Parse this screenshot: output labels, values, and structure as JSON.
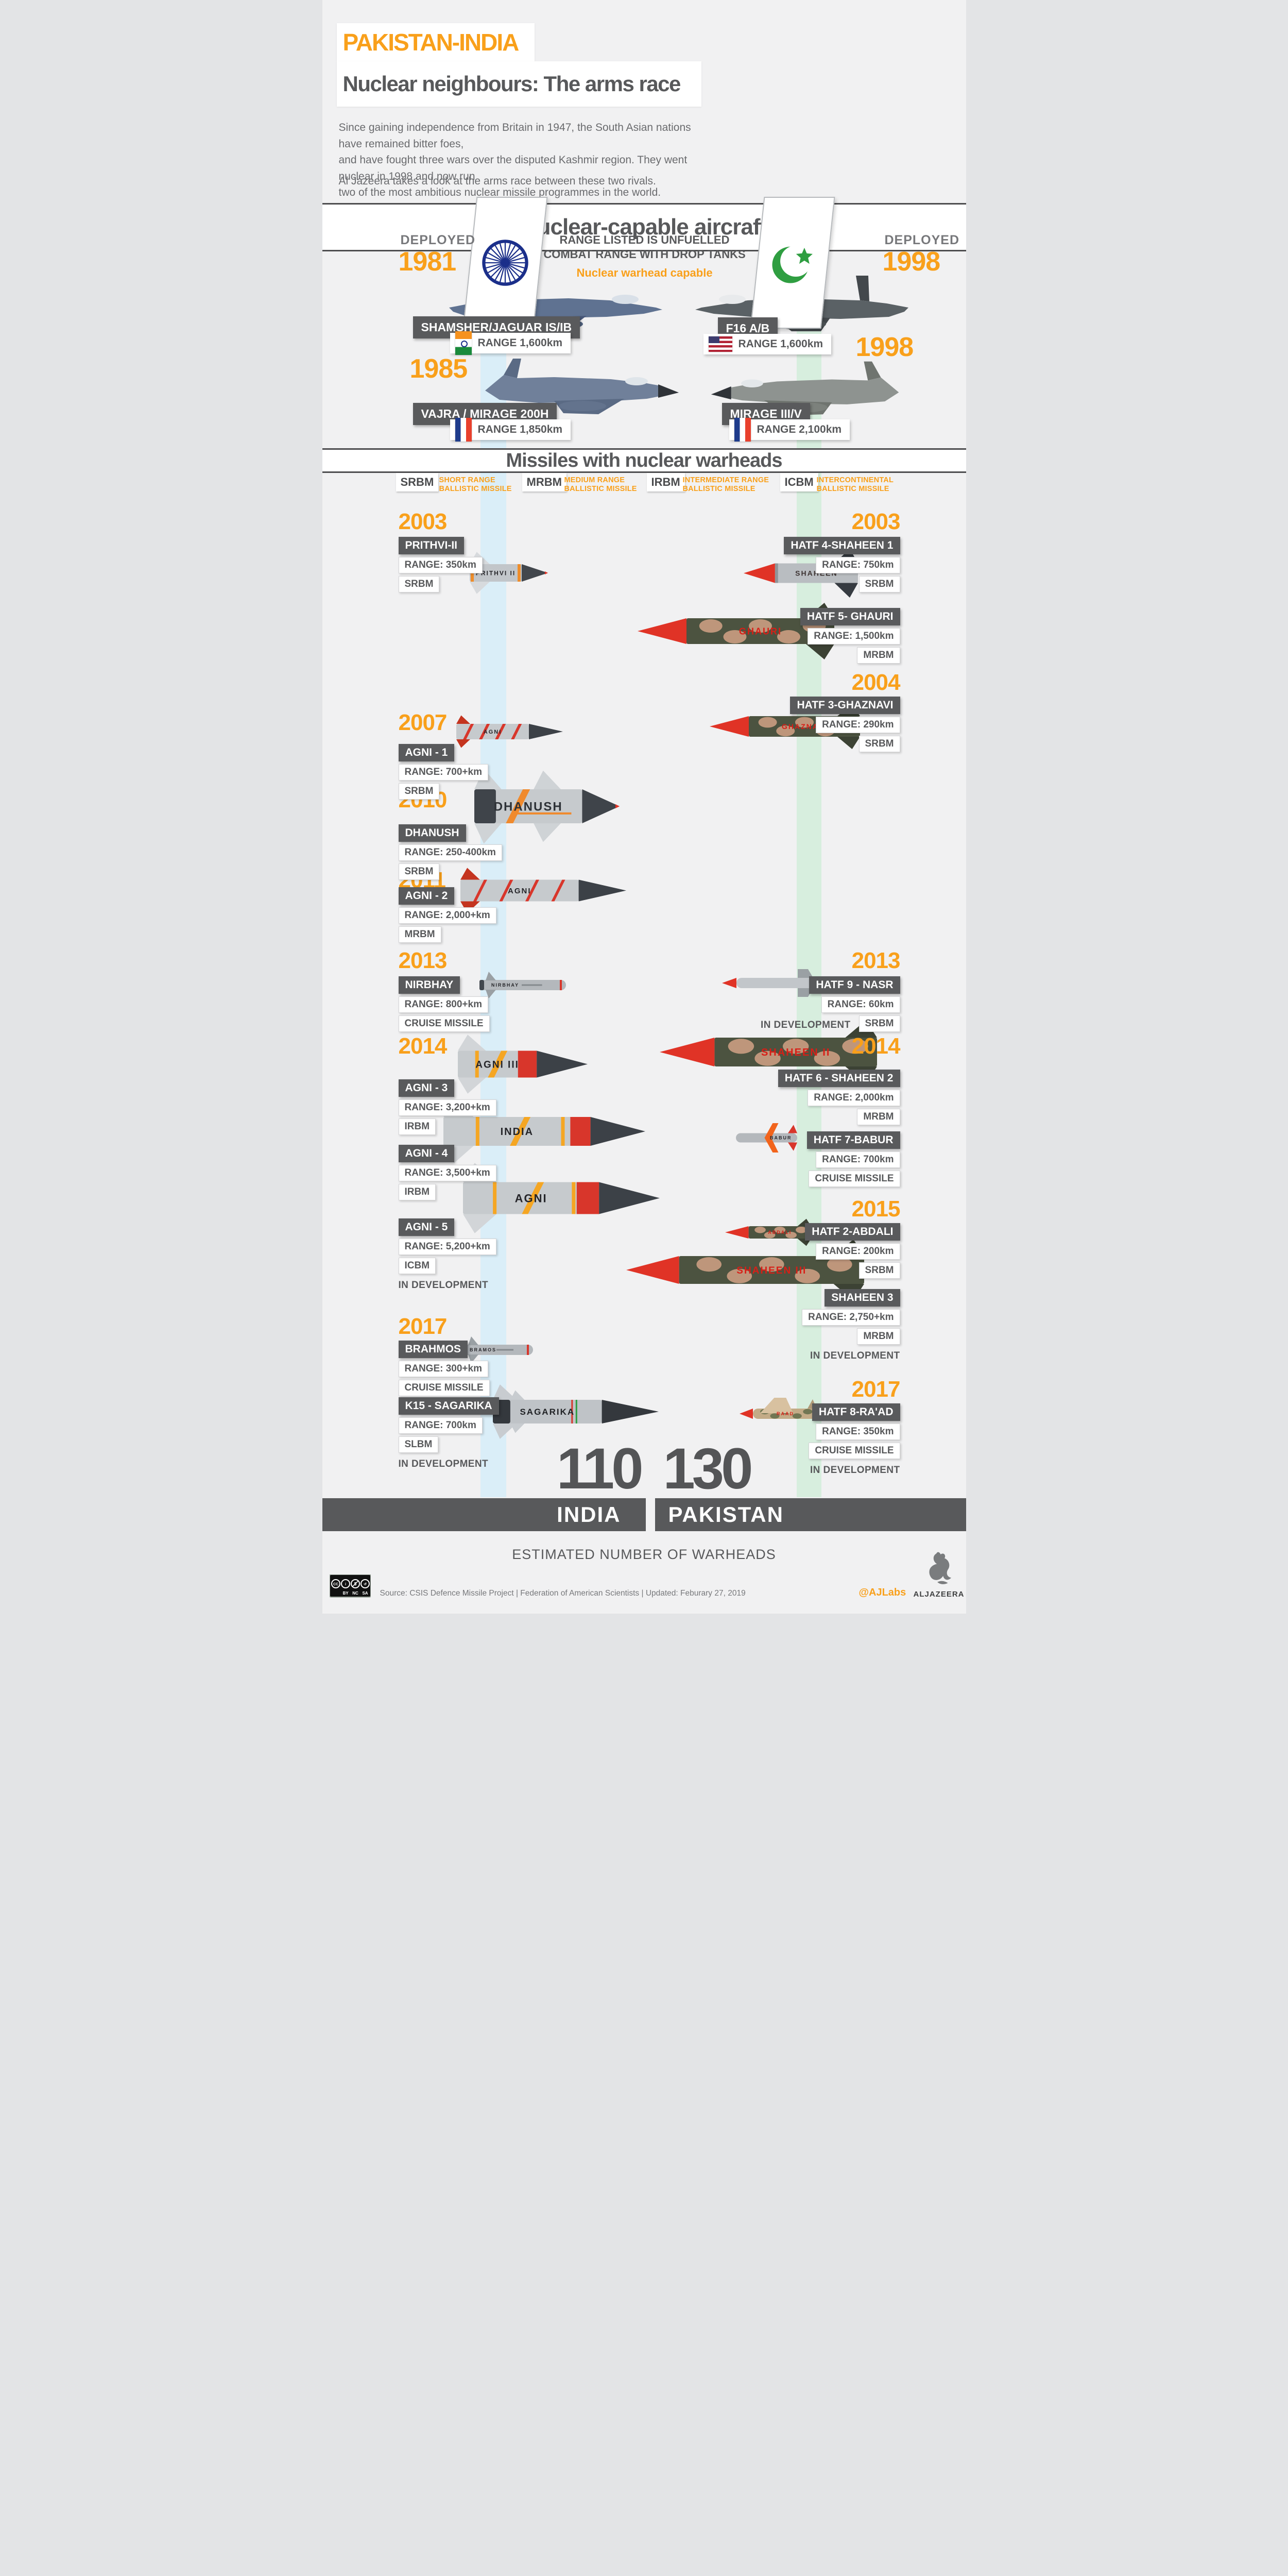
{
  "page": {
    "bg": "#f1f1f2",
    "accent_orange": "#F9A01B",
    "dark_gray": "#58595B",
    "india_band_color": "#daeef8",
    "pakistan_band_color": "#d7eede"
  },
  "header": {
    "kicker": "PAKISTAN-INDIA",
    "title": "Nuclear neighbours: The arms race",
    "intro": "Since gaining independence from Britain in 1947, the South Asian nations have remained bitter foes,\nand have fought three wars over the disputed Kashmir region. They went nuclear in 1998 and now run\ntwo of the most ambitious nuclear missile programmes in the world.",
    "intro2": "Al Jazeera takes a look at the arms race between these two rivals."
  },
  "aircraft_section": {
    "title": "Nuclear-capable aircraft",
    "note_line1": "RANGE LISTED IS UNFUELLED",
    "note_line2": "COMBAT RANGE WITH DROP TANKS",
    "note_orange": "Nuclear warhead capable",
    "india": {
      "deployed_label": "DEPLOYED",
      "years": [
        "1981",
        "1985"
      ],
      "jets": [
        {
          "name": "SHAMSHER/JAGUAR IS/IB",
          "range": "RANGE 1,600km",
          "flag": "india"
        },
        {
          "name": "VAJRA / MIRAGE 200H",
          "range": "RANGE 1,850km",
          "flag": "france"
        }
      ]
    },
    "pakistan": {
      "deployed_label": "DEPLOYED",
      "years": [
        "1998",
        "1998"
      ],
      "jets": [
        {
          "name": "F16 A/B",
          "range": "RANGE 1,600km",
          "flag": "usa"
        },
        {
          "name": "MIRAGE III/V",
          "range": "RANGE 2,100km",
          "flag": "france"
        }
      ]
    }
  },
  "missiles_section": {
    "title": "Missiles with nuclear warheads",
    "in_development_label": "IN DEVELOPMENT",
    "legend": [
      {
        "abbr": "SRBM",
        "label": "SHORT RANGE\nBALLISTIC MISSILE"
      },
      {
        "abbr": "MRBM",
        "label": "MEDIUM RANGE\nBALLISTIC MISSILE"
      },
      {
        "abbr": "IRBM",
        "label": "INTERMEDIATE RANGE\nBALLISTIC MISSILE"
      },
      {
        "abbr": "ICBM",
        "label": "INTERCONTINENTAL\nBALLISTIC MISSILE"
      }
    ],
    "entries": [
      {
        "id": "prithvi",
        "side": "india",
        "year": "2003",
        "name": "PRITHVI-II",
        "range": "RANGE: 350km",
        "class": "SRBM",
        "body_label": "PRITHVI II",
        "style": "silver"
      },
      {
        "id": "agni1",
        "side": "india",
        "year": "2007",
        "name": "AGNI - 1",
        "range": "RANGE: 700+km",
        "class": "SRBM",
        "body_label": "AGNI",
        "style": "silverred"
      },
      {
        "id": "dhanush",
        "side": "india",
        "year": "2010",
        "name": "DHANUSH",
        "range": "RANGE: 250-400km",
        "class": "SRBM",
        "body_label": "DHANUSH",
        "style": "dhanush"
      },
      {
        "id": "agni2",
        "side": "india",
        "year": "2011",
        "name": "AGNI - 2",
        "range": "RANGE: 2,000+km",
        "class": "MRBM",
        "body_label": "AGNI",
        "style": "silverred"
      },
      {
        "id": "nirbhay",
        "side": "india",
        "year": "2013",
        "name": "NIRBHAY",
        "range": "RANGE: 800+km",
        "class": "CRUISE MISSILE",
        "body_label": "NIRBHAY",
        "style": "cruise"
      },
      {
        "id": "agni3",
        "side": "india",
        "year": "2014",
        "name": "AGNI - 3",
        "range": "RANGE: 3,200+km",
        "class": "IRBM",
        "body_label": "AGNI III",
        "style": "silverorange"
      },
      {
        "id": "agni4",
        "side": "india",
        "name": "AGNI - 4",
        "range": "RANGE: 3,500+km",
        "class": "IRBM",
        "body_label": "INDIA",
        "style": "silverorange"
      },
      {
        "id": "agni5",
        "side": "india",
        "name": "AGNI - 5",
        "range": "RANGE: 5,200+km",
        "class": "ICBM",
        "in_development": true,
        "body_label": "AGNI",
        "style": "silverorange"
      },
      {
        "id": "brahmos",
        "side": "india",
        "year": "2017",
        "name": "BRAHMOS",
        "range": "RANGE: 300+km",
        "class": "CRUISE MISSILE",
        "body_label": "BRAMOS",
        "style": "cruise"
      },
      {
        "id": "k15",
        "side": "india",
        "name": "K15 - SAGARIKA",
        "range": "RANGE: 700km",
        "class": "SLBM",
        "in_development": true,
        "body_label": "SAGARIKA",
        "style": "sagarika"
      },
      {
        "id": "hatf4",
        "side": "pakistan",
        "year": "2003",
        "name": "HATF 4-SHAHEEN 1",
        "range": "RANGE: 750km",
        "class": "SRBM",
        "body_label": "SHAHEEN",
        "style": "grayred"
      },
      {
        "id": "ghauri",
        "side": "pakistan",
        "name": "HATF 5- GHAURI",
        "range": "RANGE: 1,500km",
        "class": "MRBM",
        "body_label": "GHAURI",
        "style": "camo"
      },
      {
        "id": "ghaznavi",
        "side": "pakistan",
        "year": "2004",
        "name": "HATF 3-GHAZNAVI",
        "range": "RANGE: 290km",
        "class": "SRBM",
        "body_label": "GHAZNAVI",
        "style": "camo"
      },
      {
        "id": "nasr",
        "side": "pakistan",
        "year": "2013",
        "name": "HATF 9 - NASR",
        "range": "RANGE: 60km",
        "class": "SRBM",
        "in_development": true,
        "indev_inline": true,
        "body_label": "",
        "style": "nasr"
      },
      {
        "id": "hatf6",
        "side": "pakistan",
        "year": "2014",
        "name": "HATF 6 - SHAHEEN 2",
        "range": "RANGE: 2,000km",
        "class": "MRBM",
        "body_label": "SHAHEEN II",
        "style": "camo"
      },
      {
        "id": "babur",
        "side": "pakistan",
        "name": "HATF 7-BABUR",
        "range": "RANGE: 700km",
        "class": "CRUISE MISSILE",
        "body_label": "BABUR",
        "style": "babur"
      },
      {
        "id": "abdali",
        "side": "pakistan",
        "year": "2015",
        "name": "HATF 2-ABDALI",
        "range": "RANGE: 200km",
        "class": "SRBM",
        "body_label": "ABDALI",
        "style": "camo"
      },
      {
        "id": "shaheen3",
        "side": "pakistan",
        "name": "SHAHEEN 3",
        "range": "RANGE: 2,750+km",
        "class": "MRBM",
        "in_development": true,
        "body_label": "SHAHEEN III",
        "style": "camo"
      },
      {
        "id": "raad",
        "side": "pakistan",
        "year": "2017",
        "name": "HATF 8-RA'AD",
        "range": "RANGE: 350km",
        "class": "CRUISE MISSILE",
        "in_development": true,
        "body_label": "RAAD",
        "style": "camocruise"
      }
    ]
  },
  "summary": {
    "india_count": "110",
    "pakistan_count": "130",
    "india_label": "INDIA",
    "pakistan_label": "PAKISTAN",
    "caption": "ESTIMATED NUMBER OF WARHEADS"
  },
  "footer": {
    "source": "Source: CSIS Defence Missile Project | Federation of American Scientists  |  Updated: Feburary 27, 2019",
    "handle": "@AJLabs",
    "brand": "ALJAZEERA",
    "license_labels": [
      "BY",
      "NC",
      "SA"
    ]
  }
}
